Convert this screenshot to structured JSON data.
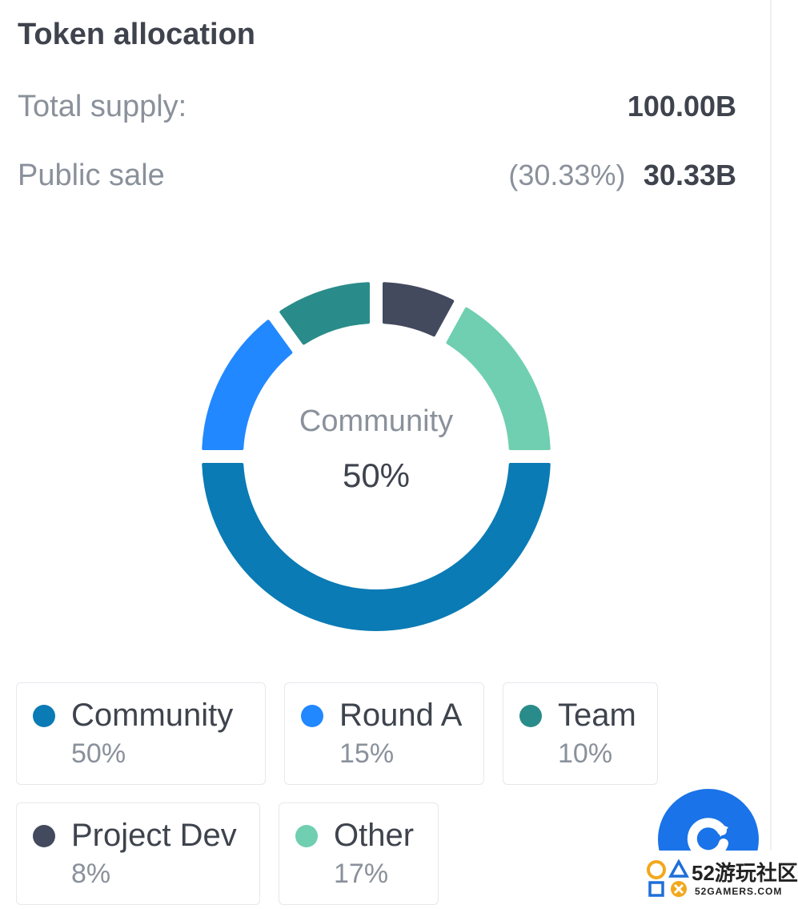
{
  "header": {
    "title": "Token allocation",
    "total_supply_label": "Total supply:",
    "total_supply_value": "100.00B",
    "public_sale_label": "Public sale",
    "public_sale_pct": "(30.33%)",
    "public_sale_value": "30.33B"
  },
  "chart_data": {
    "type": "pie",
    "donut": true,
    "center_label": "Community",
    "center_value": "50%",
    "categories": [
      "Community",
      "Round A",
      "Team",
      "Project Dev",
      "Other"
    ],
    "values": [
      50,
      15,
      10,
      8,
      17
    ],
    "colors": [
      "#0a7bb4",
      "#2188ff",
      "#2a8c8a",
      "#434a5e",
      "#6fcfb0"
    ]
  },
  "legend": [
    {
      "name": "Community",
      "pct": "50%",
      "color": "#0a7bb4"
    },
    {
      "name": "Round A",
      "pct": "15%",
      "color": "#2188ff"
    },
    {
      "name": "Team",
      "pct": "10%",
      "color": "#2a8c8a"
    },
    {
      "name": "Project Dev",
      "pct": "8%",
      "color": "#434a5e"
    },
    {
      "name": "Other",
      "pct": "17%",
      "color": "#6fcfb0"
    }
  ],
  "watermark": {
    "logo": "52游玩社区",
    "subtext": "52GAMERS.COM"
  },
  "icons": {
    "fab": "refresh-icon"
  }
}
